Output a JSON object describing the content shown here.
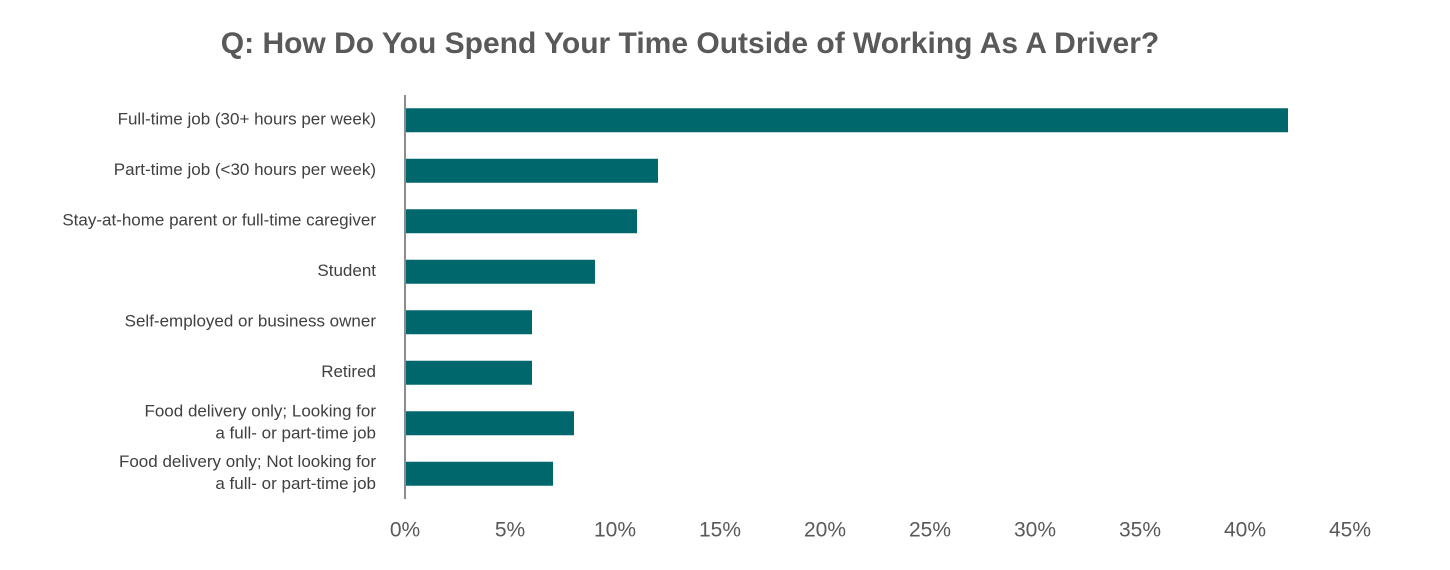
{
  "chart_data": {
    "type": "hbar",
    "title": "Q: How Do You Spend Your Time Outside of Working As A Driver?",
    "categories": [
      "Full-time job (30+ hours per week)",
      "Part-time job (<30 hours per week)",
      "Stay-at-home parent or full-time caregiver",
      "Student",
      "Self-employed or business owner",
      "Retired",
      "Food delivery only; Looking for\na full- or part-time job",
      "Food delivery only; Not looking for\na full- or part-time job"
    ],
    "values": [
      42,
      12,
      11,
      9,
      6,
      6,
      8,
      7
    ],
    "color": "#00686c",
    "xlim": [
      0,
      45
    ],
    "xticks": [
      {
        "value": 0,
        "label": "0%"
      },
      {
        "value": 5,
        "label": "5%"
      },
      {
        "value": 10,
        "label": "10%"
      },
      {
        "value": 15,
        "label": "15%"
      },
      {
        "value": 20,
        "label": "20%"
      },
      {
        "value": 25,
        "label": "25%"
      },
      {
        "value": 30,
        "label": "30%"
      },
      {
        "value": 35,
        "label": "35%"
      },
      {
        "value": 40,
        "label": "40%"
      },
      {
        "value": 45,
        "label": "45%"
      }
    ],
    "grid": false
  }
}
